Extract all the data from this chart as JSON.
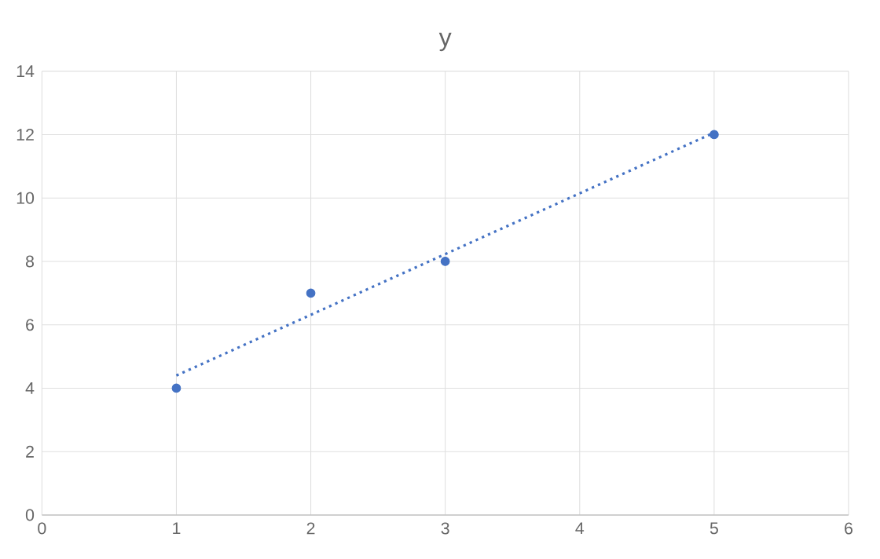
{
  "chart_data": {
    "type": "scatter",
    "title": "y",
    "xlim": [
      0,
      6
    ],
    "xticks": [
      0,
      1,
      2,
      3,
      4,
      5,
      6
    ],
    "ylim": [
      0,
      14
    ],
    "yticks": [
      0,
      2,
      4,
      6,
      8,
      10,
      12,
      14
    ],
    "grid": true,
    "series": [
      {
        "color": "#4472c4",
        "marker": "circle",
        "x": [
          1,
          2,
          3,
          5
        ],
        "values": [
          4,
          7,
          8,
          12
        ]
      },
      {
        "type": "line",
        "color": "#4472c4",
        "line_style": "dotted",
        "marker": "none",
        "x": [
          1,
          5
        ],
        "values": [
          4.4,
          12.06
        ]
      }
    ]
  }
}
